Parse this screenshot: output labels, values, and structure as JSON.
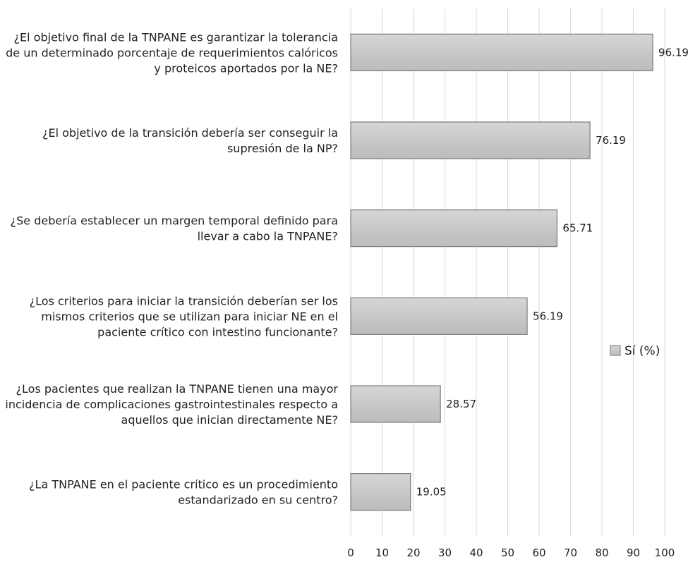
{
  "chart_data": {
    "type": "bar",
    "orientation": "horizontal",
    "categories": [
      [
        "¿El objetivo final de la TNPANE es garantizar la tolerancia",
        "de un determinado porcentaje de requerimientos calóricos",
        "y proteicos aportados por la NE?"
      ],
      [
        "¿El objetivo de la transición debería ser conseguir la",
        "supresión de la NP?"
      ],
      [
        "¿Se debería establecer un margen temporal definido para",
        "llevar a cabo la TNPANE?"
      ],
      [
        "¿Los criterios para iniciar la transición deberían ser los",
        "mismos criterios que se utilizan para iniciar NE en el",
        "paciente crítico con intestino funcionante?"
      ],
      [
        "¿Los pacientes que realizan la TNPANE tienen una mayor",
        "incidencia de complicaciones gastrointestinales respecto a",
        "aquellos que inician directamente NE?"
      ],
      [
        "¿La TNPANE en el paciente crítico es un procedimiento",
        "estandarizado en su centro?"
      ]
    ],
    "series": [
      {
        "name": "Sí (%)",
        "values": [
          96.19,
          76.19,
          65.71,
          56.19,
          28.57,
          19.05
        ],
        "labels": [
          "96.19",
          "76.19",
          "65.71",
          "56.19",
          "28.57",
          "19.05"
        ]
      }
    ],
    "xlim": [
      0,
      100
    ],
    "xticks": [
      0,
      10,
      20,
      30,
      40,
      50,
      60,
      70,
      80,
      90,
      100
    ],
    "xtick_labels": [
      "0",
      "10",
      "20",
      "30",
      "40",
      "50",
      "60",
      "70",
      "80",
      "90",
      "100"
    ],
    "grid": "vertical",
    "legend_position": "right",
    "bar_fill_color": "#c9c9c9",
    "bar_border_color": "#7a7a7a",
    "gridline_color": "#d9d9d9"
  }
}
